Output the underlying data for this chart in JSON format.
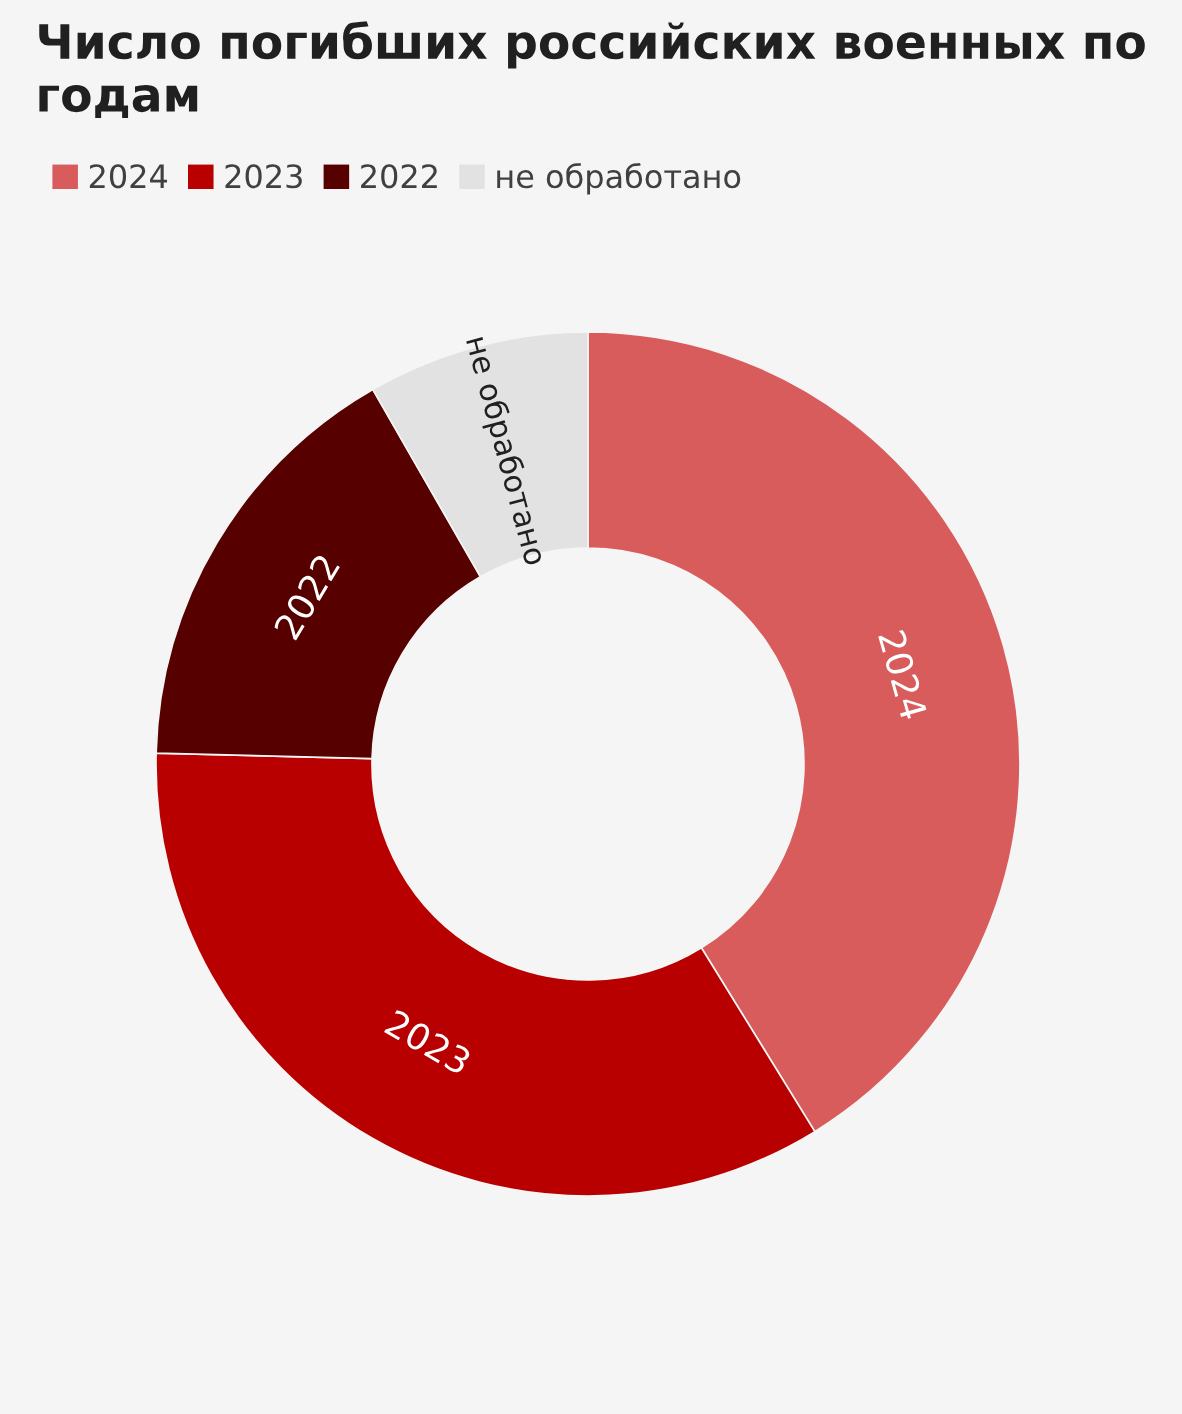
{
  "chart_data": {
    "type": "donut",
    "title": "Число погибших российских военных по годам",
    "categories": [
      "2024",
      "2023",
      "2022",
      "не обработано"
    ],
    "values": [
      41.2,
      34.2,
      16.3,
      8.3
    ],
    "colors": [
      "#d95c5c",
      "#b80000",
      "#570000",
      "#e2e2e2"
    ],
    "legend": "top left"
  }
}
